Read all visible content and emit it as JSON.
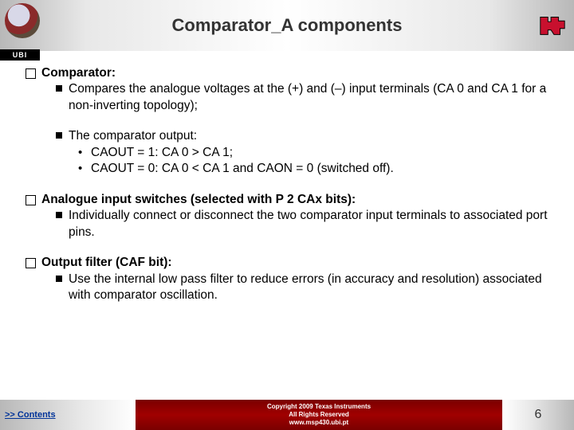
{
  "header": {
    "title": "Comparator_A components",
    "ubi_label": "UBI"
  },
  "content": {
    "sections": [
      {
        "heading": "Comparator:",
        "subs": [
          {
            "text": "Compares the analogue voltages at the (+) and (–) input terminals (CA 0 and CA 1 for a non-inverting topology);",
            "bullets": []
          },
          {
            "text": "The comparator output:",
            "bullets": [
              "CAOUT = 1: CA 0 > CA 1;",
              "CAOUT = 0: CA 0 < CA 1 and CAON = 0 (switched off)."
            ],
            "gap_before": true
          }
        ]
      },
      {
        "heading": "Analogue input switches (selected with P 2 CAx bits):",
        "subs": [
          {
            "text": "Individually connect or disconnect the two comparator input terminals to associated port pins.",
            "bullets": []
          }
        ]
      },
      {
        "heading": "Output filter (CAF bit):",
        "subs": [
          {
            "text": "Use the internal low pass filter to reduce errors (in accuracy and resolution) associated with comparator oscillation.",
            "bullets": []
          }
        ]
      }
    ]
  },
  "footer": {
    "contents_link": ">> Contents",
    "copyright_line1": "Copyright  2009 Texas Instruments",
    "copyright_line2": "All Rights Reserved",
    "site": "www.msp430.ubi.pt",
    "page_number": "6"
  }
}
